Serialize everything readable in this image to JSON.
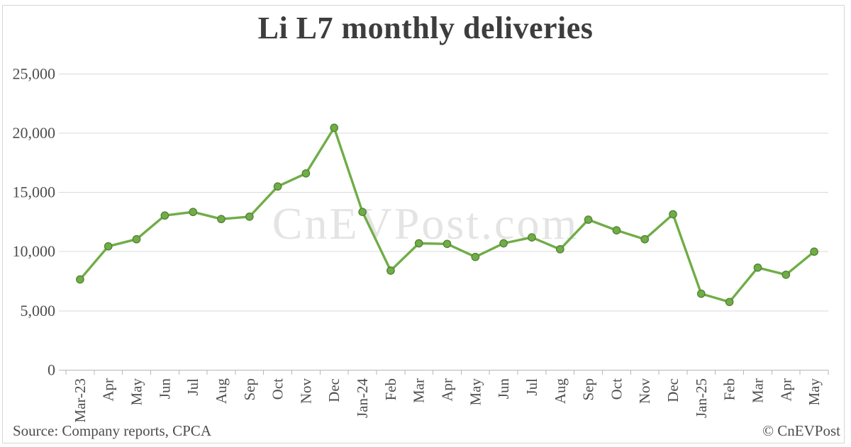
{
  "title": "Li L7 monthly deliveries",
  "watermark": "CnEVPost.com",
  "footer": {
    "source": "Source: Company reports, CPCA",
    "credit": "© CnEVPost"
  },
  "colors": {
    "line": "#70ad47",
    "marker_fill": "#70ad47",
    "marker_edge": "#538135",
    "grid": "#dadada",
    "axis": "#b7b7b7",
    "axis_text": "#4d4d4d",
    "title_text": "#3d3d3d",
    "watermark_text": "#e4e4e4",
    "footer_text": "#4d4d4d"
  },
  "chart_data": {
    "type": "line",
    "title": "Li L7 monthly deliveries",
    "categories": [
      "Mar-23",
      "Apr",
      "May",
      "Jun",
      "Jul",
      "Aug",
      "Sep",
      "Oct",
      "Nov",
      "Dec",
      "Jan-24",
      "Feb",
      "Mar",
      "Apr",
      "May",
      "Jun",
      "Jul",
      "Aug",
      "Sep",
      "Oct",
      "Nov",
      "Dec",
      "Jan-25",
      "Feb",
      "Mar",
      "Apr",
      "May"
    ],
    "values": [
      7650,
      10450,
      11050,
      13050,
      13350,
      12750,
      12950,
      15500,
      16600,
      20450,
      13350,
      8400,
      10700,
      10650,
      9550,
      10700,
      11200,
      10200,
      12700,
      11800,
      11050,
      13150,
      6450,
      5750,
      8650,
      8050,
      10000
    ],
    "xlabel": "",
    "ylabel": "",
    "ylim": [
      0,
      25000
    ],
    "ytick_interval": 5000,
    "ytick_labels": [
      "0",
      "5,000",
      "10,000",
      "15,000",
      "20,000",
      "25,000"
    ],
    "grid": true,
    "legend": "none",
    "marker": "circle",
    "source_note": "Source: Company reports, CPCA",
    "credit": "© CnEVPost"
  }
}
